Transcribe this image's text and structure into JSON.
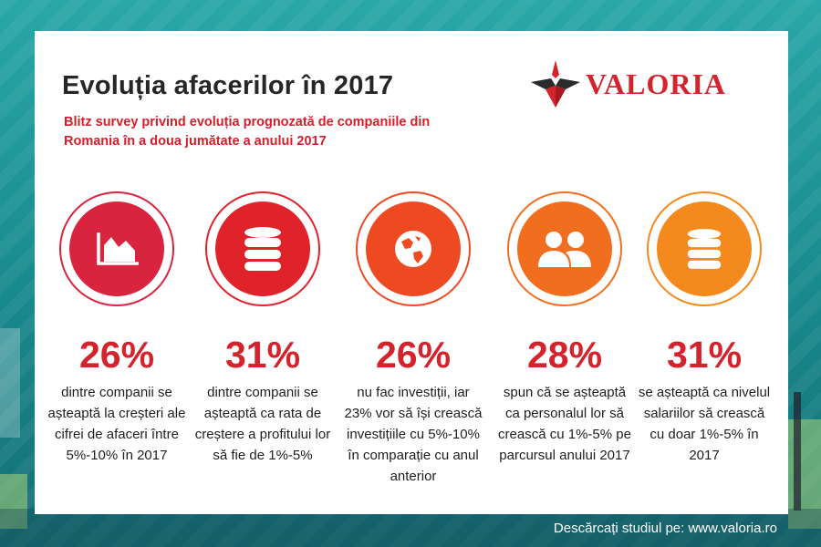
{
  "header": {
    "title": "Evoluția afacerilor în 2017",
    "subtitle": "Blitz survey privind evoluția prognozată de companiile din Romania în a doua jumătate a anului 2017"
  },
  "logo": {
    "text": "VALORIA",
    "color": "#d5232d"
  },
  "stats": [
    {
      "value": "26%",
      "text": "dintre companii se așteaptă la creșteri ale cifrei de afaceri între 5%-10% în 2017",
      "icon": "area-chart-icon",
      "color": "#d8243f"
    },
    {
      "value": "31%",
      "text": "dintre companii se așteaptă ca rata de creștere a profitului lor să fie de 1%-5%",
      "icon": "database-icon",
      "color": "#e0232b"
    },
    {
      "value": "26%",
      "text": "nu fac investiții, iar 23% vor să își crească investițiile cu 5%-10% în comparație cu anul anterior",
      "icon": "globe-icon",
      "color": "#ee4a22"
    },
    {
      "value": "28%",
      "text": "spun că se așteaptă ca personalul lor să crească cu 1%-5% pe parcursul anului 2017",
      "icon": "users-icon",
      "color": "#f26e1f"
    },
    {
      "value": "31%",
      "text": "se așteaptă ca nivelul salariilor să crească cu doar 1%-5% în 2017",
      "icon": "database-icon",
      "color": "#f48a1e"
    }
  ],
  "footer": {
    "text": "Descărcați studiul pe: www.valoria.ro"
  }
}
